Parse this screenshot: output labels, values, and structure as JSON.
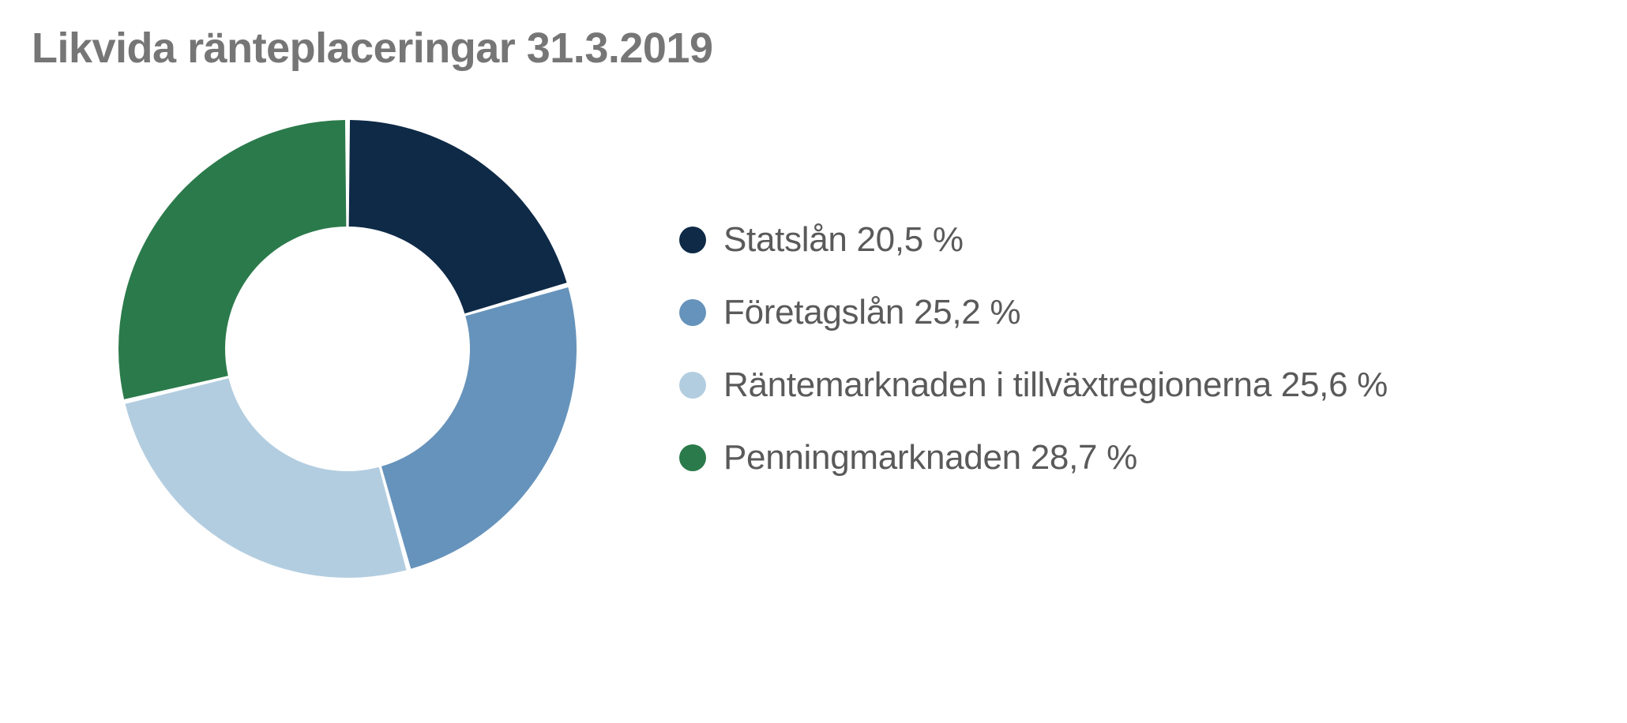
{
  "chart": {
    "type": "donut",
    "title": "Likvida ränteplaceringar 31.3.2019",
    "title_color": "#767676",
    "title_fontsize": 54,
    "title_fontweight": 600,
    "background_color": "#ffffff",
    "donut_outer_radius": 290,
    "donut_inner_radius": 155,
    "start_angle_deg": -90,
    "slice_gap_deg": 1.2,
    "legend_marker_size": 34,
    "legend_fontsize": 44,
    "legend_text_color": "#5a5a5a",
    "slices": [
      {
        "label": "Statslån 20,5 %",
        "value": 20.5,
        "color": "#0e2a47"
      },
      {
        "label": "Företagslån 25,2 %",
        "value": 25.2,
        "color": "#6693bb"
      },
      {
        "label": "Räntemarknaden i tillväxtregionerna 25,6 %",
        "value": 25.6,
        "color": "#b3cde0"
      },
      {
        "label": "Penningmarknaden 28,7 %",
        "value": 28.7,
        "color": "#2b7a4b"
      }
    ]
  }
}
